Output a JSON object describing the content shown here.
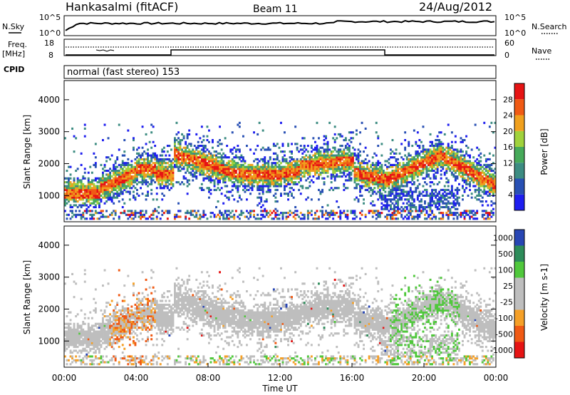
{
  "header": {
    "station": "Hankasalmi (fitACF)",
    "beam": "Beam 11",
    "date": "24/Aug/2012"
  },
  "noise_panel": {
    "left_label": "N.Sky",
    "right_label": "N.Search",
    "left_ticks": [
      "10^5",
      "10^0"
    ],
    "right_ticks": [
      "10^5",
      "10^0"
    ]
  },
  "freq_panel": {
    "left_label_1": "Freq.",
    "left_label_2": "[MHz]",
    "left_ticks": [
      "18",
      "8"
    ],
    "right_ticks": [
      "60",
      "0"
    ],
    "right_label": "Nave",
    "cpid_label": "CPID",
    "cpid_text": "normal (fast stereo) 153"
  },
  "colors": {
    "power": [
      "#1e1ef0",
      "#2850b4",
      "#3c8c82",
      "#46aa5a",
      "#a0d23c",
      "#f0a01e",
      "#f05a14",
      "#e61414"
    ],
    "velocity": [
      "#e61414",
      "#f05a14",
      "#f5a028",
      "#bebebe",
      "#bebebe",
      "#50c83c",
      "#2d8c5a",
      "#2846b4"
    ]
  },
  "chart_data": [
    {
      "type": "heatmap",
      "title": "Power",
      "ylabel": "Slant Range [km]",
      "ylim": [
        180,
        4600
      ],
      "yticks": [
        1000,
        2000,
        3000,
        4000
      ],
      "colorbar_label": "Power [dB]",
      "colorbar_ticks": [
        "4",
        "8",
        "12",
        "16",
        "20",
        "24",
        "28"
      ],
      "colorbar_range": [
        0,
        32
      ]
    },
    {
      "type": "heatmap",
      "title": "Velocity",
      "xlabel": "Time UT",
      "ylabel": "Slant Range [km]",
      "ylim": [
        180,
        4600
      ],
      "yticks": [
        1000,
        2000,
        3000,
        4000
      ],
      "xticks": [
        "00:00",
        "04:00",
        "08:00",
        "12:00",
        "16:00",
        "20:00",
        "00:00"
      ],
      "xlim_hours": [
        0,
        24
      ],
      "colorbar_label": "Velocity [m s-1]",
      "colorbar_ticks": [
        "-1000",
        "-500",
        "-100",
        "-25",
        "25",
        "100",
        "500",
        "1000"
      ]
    }
  ]
}
